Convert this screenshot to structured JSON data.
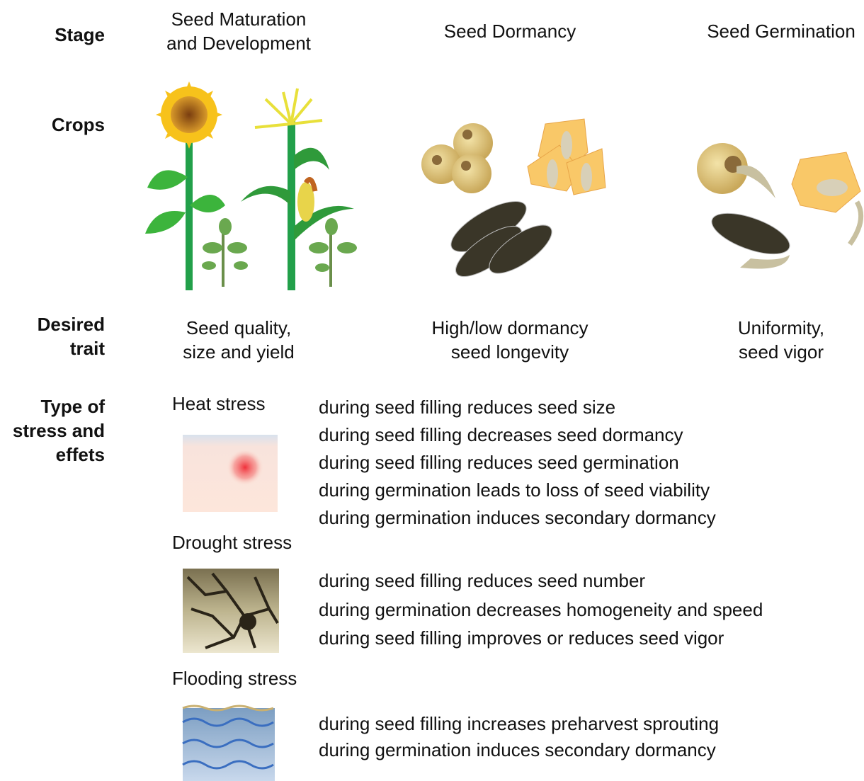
{
  "labels": {
    "stage": [
      "Stage"
    ],
    "crops": [
      "Crops"
    ],
    "desired_trait": [
      "Desired",
      "trait"
    ],
    "stress": [
      "Type of",
      "stress and",
      "effets"
    ]
  },
  "stages": [
    [
      "Seed Maturation",
      "and Development"
    ],
    [
      "Seed Dormancy"
    ],
    [
      "Seed Germination"
    ]
  ],
  "traits": [
    [
      "Seed quality,",
      "size and yield"
    ],
    [
      "High/low dormancy",
      "seed longevity"
    ],
    [
      "Uniformity,",
      "seed vigor"
    ]
  ],
  "stresses": [
    {
      "name": "Heat stress",
      "effects": [
        "during seed filling reduces seed size",
        "during seed filling decreases seed dormancy",
        "during seed filling reduces seed germination",
        "during germination leads to loss of seed viability",
        "during germination induces secondary dormancy"
      ]
    },
    {
      "name": "Drought stress",
      "effects": [
        "during seed filling reduces seed number",
        "during germination decreases homogeneity and speed",
        "during seed filling improves or reduces seed vigor"
      ]
    },
    {
      "name": "Flooding stress",
      "effects": [
        "during seed filling increases preharvest sprouting",
        "during germination induces secondary dormancy"
      ]
    }
  ]
}
